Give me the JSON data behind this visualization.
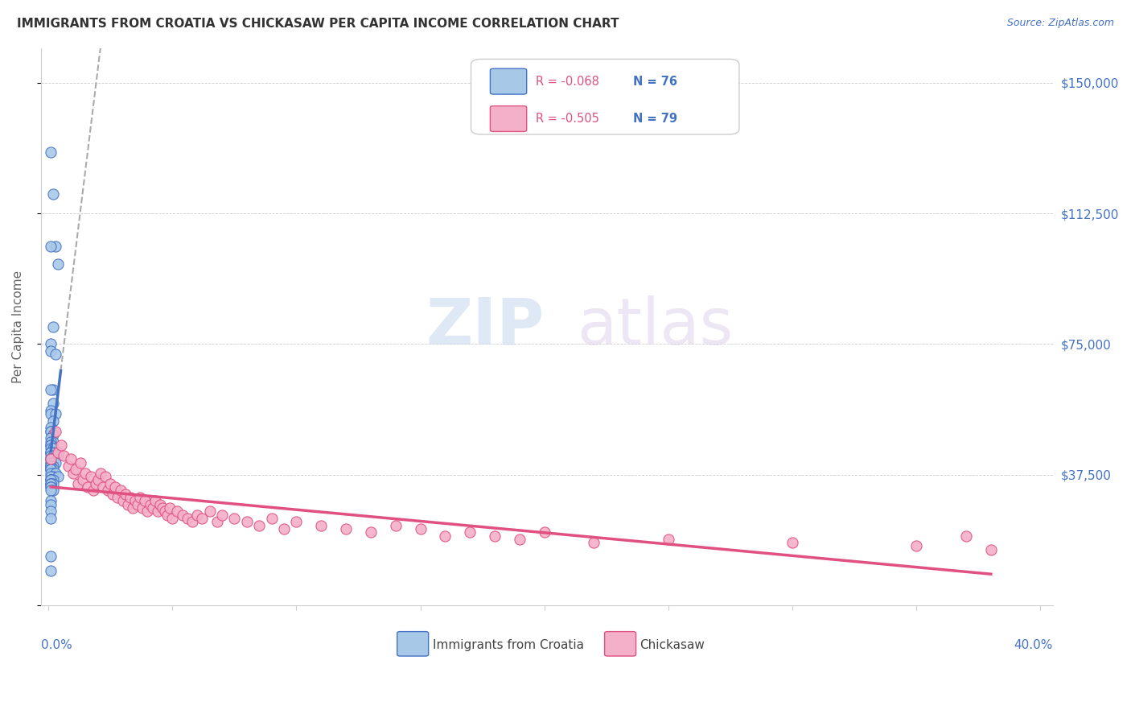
{
  "title": "IMMIGRANTS FROM CROATIA VS CHICKASAW PER CAPITA INCOME CORRELATION CHART",
  "source": "Source: ZipAtlas.com",
  "ylabel": "Per Capita Income",
  "xlim": [
    0.0,
    0.4
  ],
  "ylim": [
    0,
    160000
  ],
  "yticks": [
    0,
    37500,
    75000,
    112500,
    150000
  ],
  "ytick_labels": [
    "",
    "$37,500",
    "$75,000",
    "$112,500",
    "$150,000"
  ],
  "watermark_zip": "ZIP",
  "watermark_atlas": "atlas",
  "legend_r1": "R = -0.068",
  "legend_n1": "N = 76",
  "legend_r2": "R = -0.505",
  "legend_n2": "N = 79",
  "color_blue": "#a8c8e8",
  "color_pink": "#f4b0c8",
  "color_blue_line": "#4472c4",
  "color_pink_line": "#e05080",
  "color_dashed": "#aaaaaa",
  "color_axis_blue": "#4472c4",
  "background": "#ffffff",
  "blue_scatter_x": [
    0.001,
    0.002,
    0.003,
    0.001,
    0.004,
    0.002,
    0.001,
    0.001,
    0.003,
    0.002,
    0.001,
    0.002,
    0.001,
    0.001,
    0.003,
    0.002,
    0.001,
    0.001,
    0.001,
    0.002,
    0.001,
    0.002,
    0.001,
    0.001,
    0.001,
    0.002,
    0.001,
    0.002,
    0.001,
    0.001,
    0.002,
    0.001,
    0.003,
    0.001,
    0.004,
    0.002,
    0.001,
    0.001,
    0.002,
    0.001,
    0.001,
    0.002,
    0.003,
    0.001,
    0.002,
    0.001,
    0.001,
    0.001,
    0.001,
    0.002,
    0.001,
    0.001,
    0.002,
    0.001,
    0.003,
    0.002,
    0.001,
    0.004,
    0.001,
    0.001,
    0.002,
    0.001,
    0.001,
    0.002,
    0.001,
    0.001,
    0.001,
    0.001,
    0.002,
    0.001,
    0.001,
    0.001,
    0.001,
    0.001,
    0.001,
    0.001
  ],
  "blue_scatter_y": [
    130000,
    118000,
    103000,
    103000,
    98000,
    80000,
    75000,
    73000,
    72000,
    62000,
    62000,
    58000,
    56000,
    55000,
    55000,
    53000,
    51000,
    50000,
    50000,
    49000,
    48000,
    47000,
    47000,
    46000,
    46000,
    45000,
    45000,
    45000,
    44000,
    44000,
    44000,
    44000,
    43000,
    43000,
    43000,
    43000,
    42000,
    42000,
    42000,
    42000,
    41000,
    41000,
    41000,
    41000,
    40000,
    40000,
    40000,
    40000,
    39000,
    39000,
    39000,
    39000,
    38000,
    38000,
    38000,
    37000,
    37000,
    37000,
    36000,
    36000,
    36000,
    36000,
    35000,
    35000,
    35000,
    35000,
    34000,
    34000,
    33000,
    33000,
    30000,
    29000,
    27000,
    25000,
    14000,
    10000
  ],
  "pink_scatter_x": [
    0.001,
    0.003,
    0.004,
    0.005,
    0.006,
    0.008,
    0.009,
    0.01,
    0.011,
    0.012,
    0.013,
    0.014,
    0.015,
    0.016,
    0.017,
    0.018,
    0.019,
    0.02,
    0.021,
    0.022,
    0.023,
    0.024,
    0.025,
    0.026,
    0.027,
    0.028,
    0.029,
    0.03,
    0.031,
    0.032,
    0.033,
    0.034,
    0.035,
    0.036,
    0.037,
    0.038,
    0.039,
    0.04,
    0.041,
    0.042,
    0.043,
    0.044,
    0.045,
    0.046,
    0.047,
    0.048,
    0.049,
    0.05,
    0.052,
    0.054,
    0.056,
    0.058,
    0.06,
    0.062,
    0.065,
    0.068,
    0.07,
    0.075,
    0.08,
    0.085,
    0.09,
    0.095,
    0.1,
    0.11,
    0.12,
    0.13,
    0.14,
    0.15,
    0.16,
    0.17,
    0.18,
    0.19,
    0.2,
    0.22,
    0.25,
    0.3,
    0.35,
    0.38,
    0.37
  ],
  "pink_scatter_y": [
    42000,
    50000,
    44000,
    46000,
    43000,
    40000,
    42000,
    38000,
    39000,
    35000,
    41000,
    36000,
    38000,
    34000,
    37000,
    33000,
    35000,
    36000,
    38000,
    34000,
    37000,
    33000,
    35000,
    32000,
    34000,
    31000,
    33000,
    30000,
    32000,
    29000,
    31000,
    28000,
    30000,
    29000,
    31000,
    28000,
    30000,
    27000,
    29000,
    28000,
    30000,
    27000,
    29000,
    28000,
    27000,
    26000,
    28000,
    25000,
    27000,
    26000,
    25000,
    24000,
    26000,
    25000,
    27000,
    24000,
    26000,
    25000,
    24000,
    23000,
    25000,
    22000,
    24000,
    23000,
    22000,
    21000,
    23000,
    22000,
    20000,
    21000,
    20000,
    19000,
    21000,
    18000,
    19000,
    18000,
    17000,
    16000,
    20000
  ]
}
